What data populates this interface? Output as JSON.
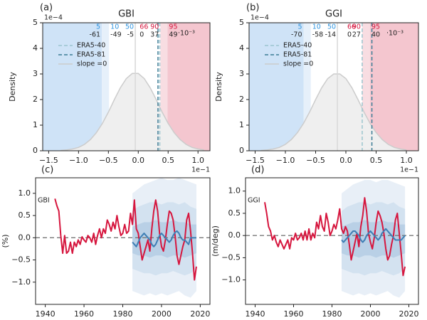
{
  "chart_data": [
    {
      "type": "density",
      "panel": "(a)",
      "title": "GBI",
      "name": "slope =0",
      "color": "#cccccc",
      "fill": "#efefef",
      "x": [
        -1.3,
        -1.2,
        -1.1,
        -1.0,
        -0.9,
        -0.8,
        -0.7,
        -0.6,
        -0.5,
        -0.4,
        -0.3,
        -0.2,
        -0.1,
        0.0,
        0.1,
        0.2,
        0.3,
        0.4,
        0.5,
        0.6,
        0.7,
        0.8,
        0.9,
        1.0,
        1.1
      ],
      "values": [
        0.01,
        0.03,
        0.07,
        0.13,
        0.25,
        0.44,
        0.71,
        1.07,
        1.51,
        2.0,
        2.46,
        2.82,
        3.02,
        3.02,
        2.82,
        2.46,
        2.0,
        1.51,
        1.07,
        0.71,
        0.44,
        0.25,
        0.13,
        0.07,
        0.03
      ],
      "xlim": [
        -1.6,
        1.2
      ],
      "ylim": [
        0,
        5
      ],
      "xticks": [
        {
          "value": -1.5,
          "label": "−1.5"
        },
        {
          "value": -1.0,
          "label": "−1.0"
        },
        {
          "value": -0.5,
          "label": "−0.5"
        },
        {
          "value": 0.0,
          "label": "0.0"
        },
        0.5,
        {
          "value": 1.0,
          "label": "1.0"
        }
      ],
      "yticks": [
        0,
        1,
        2,
        3,
        4,
        5
      ],
      "ylabel": "Density",
      "x_offset_label": "1e−1",
      "y_offset_label": "1e−4",
      "percentiles": [
        5,
        10,
        50,
        66,
        90,
        95
      ],
      "percentile_values": [
        -61,
        -49,
        -5,
        0,
        37,
        49
      ],
      "percentile_scale": "·10⁻³",
      "percentile_colors": [
        "#2e94e0",
        "#2e94e0",
        "#2e94e0",
        "#d6163e",
        "#d6163e",
        "#d6163e"
      ],
      "region_colors": [
        "#cfe3f7",
        "#e6f0fa",
        "#f8dde2",
        "#f4c6cf"
      ],
      "median_color": "#d8d8d8",
      "reference_lines": [
        {
          "name": "ERA5-40",
          "x": 0.36,
          "color": "#9cc5cf"
        },
        {
          "name": "ERA5-81",
          "x": 0.33,
          "color": "#3c7c95"
        }
      ],
      "legend": "upper left"
    },
    {
      "type": "density",
      "panel": "(b)",
      "title": "GGI",
      "name": "slope =0",
      "color": "#cccccc",
      "fill": "#efefef",
      "x": [
        -1.4,
        -1.3,
        -1.2,
        -1.1,
        -1.0,
        -0.9,
        -0.8,
        -0.7,
        -0.6,
        -0.5,
        -0.4,
        -0.3,
        -0.2,
        -0.1,
        0.0,
        0.1,
        0.2,
        0.3,
        0.4,
        0.5,
        0.6,
        0.7,
        0.8,
        0.9,
        1.0
      ],
      "values": [
        0.01,
        0.03,
        0.07,
        0.13,
        0.25,
        0.44,
        0.71,
        1.07,
        1.51,
        2.0,
        2.46,
        2.82,
        3.0,
        3.0,
        2.82,
        2.46,
        2.0,
        1.51,
        1.07,
        0.71,
        0.44,
        0.25,
        0.13,
        0.07,
        0.03
      ],
      "xlim": [
        -1.6,
        1.2
      ],
      "ylim": [
        0,
        5
      ],
      "xticks": [
        {
          "value": -1.5,
          "label": "−1.5"
        },
        {
          "value": -1.0,
          "label": "−1.0"
        },
        {
          "value": -0.5,
          "label": "−0.5"
        },
        {
          "value": 0.0,
          "label": "0.0"
        },
        0.5,
        {
          "value": 1.0,
          "label": "1.0"
        }
      ],
      "yticks": [
        0,
        1,
        2,
        3,
        4,
        5
      ],
      "ylabel": "Density",
      "x_offset_label": "1e−1",
      "y_offset_label": "1e−4",
      "percentiles": [
        5,
        10,
        50,
        66,
        90,
        95
      ],
      "percentile_values": [
        -70,
        -58,
        -14,
        0,
        27,
        40
      ],
      "percentile_scale": "·10⁻³",
      "percentile_colors": [
        "#2e94e0",
        "#2e94e0",
        "#2e94e0",
        "#d6163e",
        "#d6163e",
        "#d6163e"
      ],
      "region_colors": [
        "#cfe3f7",
        "#e6f0fa",
        "#f8dde2",
        "#f4c6cf"
      ],
      "median_color": "#d8d8d8",
      "reference_lines": [
        {
          "name": "ERA5-40",
          "x": 0.27,
          "color": "#9cc5cf"
        },
        {
          "name": "ERA5-81",
          "x": 0.43,
          "color": "#3c7c95"
        }
      ],
      "legend": "upper left"
    },
    {
      "type": "timeseries",
      "panel": "(c)",
      "label": "GBI",
      "ylabel": "(%)",
      "xlim": [
        1935,
        2025
      ],
      "ylim": [
        -1.5,
        1.35
      ],
      "xticks": [
        1940,
        1960,
        1980,
        2000,
        2020
      ],
      "yticks": [
        {
          "value": 1.0,
          "label": "1.0"
        },
        0.5,
        {
          "value": 0.0,
          "label": "0.0"
        },
        {
          "value": -0.5,
          "label": "−0.5"
        },
        {
          "value": -1.0,
          "label": "−1.0"
        }
      ],
      "hline": 0,
      "hline_color": "#777777",
      "bands": [
        {
          "color": "#e8eff7",
          "x": [
            1985,
            1988,
            1991,
            1994,
            1997,
            2000,
            2003,
            2006,
            2009,
            2012,
            2015,
            2018
          ],
          "lower": [
            -1.2,
            -1.25,
            -1.3,
            -1.25,
            -1.3,
            -1.25,
            -1.3,
            -1.25,
            -1.2,
            -1.3,
            -1.35,
            -1.2
          ],
          "upper": [
            1.0,
            1.1,
            1.2,
            1.25,
            1.3,
            1.35,
            1.3,
            1.3,
            1.35,
            1.3,
            1.25,
            1.2
          ]
        },
        {
          "color": "#d3e2f0",
          "x": [
            1985,
            1988,
            1991,
            1994,
            1997,
            2000,
            2003,
            2006,
            2009,
            2012,
            2015,
            2018
          ],
          "lower": [
            -0.7,
            -0.75,
            -0.8,
            -0.8,
            -0.85,
            -0.8,
            -0.8,
            -0.75,
            -0.8,
            -0.85,
            -0.8,
            -0.7
          ],
          "upper": [
            0.6,
            0.7,
            0.75,
            0.8,
            0.8,
            0.75,
            0.8,
            0.8,
            0.75,
            0.8,
            0.7,
            0.65
          ]
        },
        {
          "color": "#b9d0e6",
          "x": [
            1985,
            1988,
            1991,
            1994,
            1997,
            2000,
            2003,
            2006,
            2009,
            2012,
            2015,
            2018
          ],
          "lower": [
            -0.35,
            -0.4,
            -0.4,
            -0.45,
            -0.4,
            -0.4,
            -0.45,
            -0.4,
            -0.4,
            -0.45,
            -0.4,
            -0.35
          ],
          "upper": [
            0.25,
            0.3,
            0.35,
            0.35,
            0.4,
            0.35,
            0.35,
            0.4,
            0.35,
            0.35,
            0.3,
            0.3
          ]
        }
      ],
      "series": [
        {
          "color": "#d6163e",
          "x": [
            1945,
            1946,
            1947,
            1948,
            1949,
            1950,
            1951,
            1952,
            1953,
            1954,
            1955,
            1956,
            1957,
            1958,
            1959,
            1960,
            1961,
            1962,
            1963,
            1964,
            1965,
            1966,
            1967,
            1968,
            1969,
            1970,
            1971,
            1972,
            1973,
            1974,
            1975,
            1976,
            1977,
            1978,
            1979,
            1980,
            1981,
            1982,
            1983,
            1984,
            1985,
            1986,
            1987,
            1988,
            1989,
            1990,
            1991,
            1992,
            1993,
            1994,
            1995,
            1996,
            1997,
            1998,
            1999,
            2000,
            2001,
            2002,
            2003,
            2004,
            2005,
            2006,
            2007,
            2008,
            2009,
            2010,
            2011,
            2012,
            2013,
            2014,
            2015,
            2016,
            2017,
            2018
          ],
          "values": [
            0.88,
            0.72,
            0.6,
            0.05,
            -0.35,
            0.05,
            -0.35,
            -0.3,
            -0.1,
            -0.35,
            -0.1,
            -0.2,
            -0.05,
            -0.15,
            0.02,
            -0.05,
            -0.1,
            0.05,
            0.0,
            -0.1,
            0.1,
            -0.15,
            0.05,
            0.2,
            0.0,
            0.2,
            0.1,
            0.4,
            0.3,
            0.15,
            0.35,
            0.2,
            0.5,
            0.25,
            0.05,
            0.1,
            0.3,
            0.1,
            0.15,
            0.55,
            0.3,
            0.85,
            0.2,
            0.1,
            -0.2,
            -0.5,
            -0.35,
            -0.2,
            -0.05,
            -0.3,
            0.2,
            0.6,
            0.85,
            0.6,
            0.1,
            -0.2,
            -0.3,
            -0.05,
            0.3,
            0.6,
            0.55,
            0.4,
            0.05,
            -0.4,
            -0.6,
            -0.4,
            -0.2,
            -0.05,
            0.4,
            0.55,
            0.15,
            -0.35,
            -0.95,
            -0.65
          ]
        },
        {
          "color": "#3f7fb5",
          "x": [
            1985,
            1986,
            1987,
            1988,
            1989,
            1990,
            1991,
            1992,
            1993,
            1994,
            1995,
            1996,
            1997,
            1998,
            1999,
            2000,
            2001,
            2002,
            2003,
            2004,
            2005,
            2006,
            2007,
            2008,
            2009,
            2010,
            2011,
            2012,
            2013,
            2014,
            2015,
            2016,
            2017,
            2018
          ],
          "values": [
            -0.1,
            -0.15,
            -0.2,
            -0.1,
            0.0,
            0.05,
            0.1,
            0.05,
            0.0,
            -0.05,
            -0.15,
            -0.2,
            -0.15,
            -0.05,
            0.05,
            0.1,
            0.05,
            0.0,
            -0.05,
            -0.1,
            -0.05,
            0.05,
            0.12,
            0.15,
            0.1,
            0.0,
            -0.05,
            -0.05,
            -0.1,
            -0.15,
            0.0,
            0.0,
            0.0,
            0.0
          ]
        }
      ]
    },
    {
      "type": "timeseries",
      "panel": "(d)",
      "label": "GGI",
      "ylabel": "(m/deg)",
      "xlim": [
        1935,
        2025
      ],
      "ylim": [
        -1.55,
        1.3
      ],
      "xticks": [
        1940,
        1960,
        1980,
        2000,
        2020
      ],
      "yticks": [
        {
          "value": 1.0,
          "label": "1.0"
        },
        0.5,
        {
          "value": 0.0,
          "label": "0.0"
        },
        {
          "value": -0.5,
          "label": "−0.5"
        },
        {
          "value": -1.0,
          "label": "−1.0"
        }
      ],
      "hline": 0,
      "hline_color": "#777777",
      "bands": [
        {
          "color": "#e8eff7",
          "x": [
            1985,
            1988,
            1991,
            1994,
            1997,
            2000,
            2003,
            2006,
            2009,
            2012,
            2015,
            2018
          ],
          "lower": [
            -1.25,
            -1.3,
            -1.35,
            -1.3,
            -1.35,
            -1.3,
            -1.35,
            -1.3,
            -1.25,
            -1.35,
            -1.4,
            -1.25
          ],
          "upper": [
            0.95,
            1.05,
            1.15,
            1.2,
            1.25,
            1.25,
            1.2,
            1.25,
            1.25,
            1.2,
            1.15,
            1.1
          ]
        },
        {
          "color": "#d3e2f0",
          "x": [
            1985,
            1988,
            1991,
            1994,
            1997,
            2000,
            2003,
            2006,
            2009,
            2012,
            2015,
            2018
          ],
          "lower": [
            -0.75,
            -0.8,
            -0.85,
            -0.85,
            -0.9,
            -0.85,
            -0.85,
            -0.8,
            -0.85,
            -0.9,
            -0.85,
            -0.75
          ],
          "upper": [
            0.55,
            0.65,
            0.7,
            0.75,
            0.75,
            0.7,
            0.75,
            0.75,
            0.7,
            0.75,
            0.65,
            0.6
          ]
        },
        {
          "color": "#b9d0e6",
          "x": [
            1985,
            1988,
            1991,
            1994,
            1997,
            2000,
            2003,
            2006,
            2009,
            2012,
            2015,
            2018
          ],
          "lower": [
            -0.4,
            -0.45,
            -0.45,
            -0.5,
            -0.45,
            -0.45,
            -0.5,
            -0.45,
            -0.45,
            -0.5,
            -0.45,
            -0.4
          ],
          "upper": [
            0.2,
            0.25,
            0.3,
            0.3,
            0.35,
            0.3,
            0.3,
            0.35,
            0.3,
            0.3,
            0.25,
            0.25
          ]
        }
      ],
      "series": [
        {
          "color": "#d6163e",
          "x": [
            1945,
            1946,
            1947,
            1948,
            1949,
            1950,
            1951,
            1952,
            1953,
            1954,
            1955,
            1956,
            1957,
            1958,
            1959,
            1960,
            1961,
            1962,
            1963,
            1964,
            1965,
            1966,
            1967,
            1968,
            1969,
            1970,
            1971,
            1972,
            1973,
            1974,
            1975,
            1976,
            1977,
            1978,
            1979,
            1980,
            1981,
            1982,
            1983,
            1984,
            1985,
            1986,
            1987,
            1988,
            1989,
            1990,
            1991,
            1992,
            1993,
            1994,
            1995,
            1996,
            1997,
            1998,
            1999,
            2000,
            2001,
            2002,
            2003,
            2004,
            2005,
            2006,
            2007,
            2008,
            2009,
            2010,
            2011,
            2012,
            2013,
            2014,
            2015,
            2016,
            2017,
            2018
          ],
          "values": [
            0.75,
            0.5,
            0.2,
            0.1,
            -0.1,
            0.0,
            -0.15,
            -0.25,
            -0.1,
            -0.2,
            -0.3,
            -0.2,
            -0.1,
            -0.3,
            -0.05,
            -0.1,
            0.05,
            -0.1,
            -0.05,
            0.05,
            -0.1,
            0.1,
            -0.1,
            0.15,
            -0.1,
            0.05,
            -0.05,
            0.3,
            0.15,
            0.45,
            0.2,
            0.1,
            0.5,
            0.3,
            0.0,
            0.1,
            0.25,
            0.15,
            0.35,
            0.6,
            0.15,
            0.05,
            0.2,
            0.1,
            -0.2,
            -0.55,
            -0.35,
            -0.15,
            0.05,
            -0.25,
            0.2,
            0.45,
            0.85,
            0.55,
            0.05,
            -0.15,
            -0.3,
            -0.05,
            0.3,
            0.55,
            0.45,
            0.3,
            0.05,
            -0.3,
            -0.55,
            -0.45,
            -0.2,
            0.0,
            0.35,
            0.5,
            0.05,
            -0.4,
            -0.9,
            -0.7
          ]
        },
        {
          "color": "#3f7fb5",
          "x": [
            1985,
            1986,
            1987,
            1988,
            1989,
            1990,
            1991,
            1992,
            1993,
            1994,
            1995,
            1996,
            1997,
            1998,
            1999,
            2000,
            2001,
            2002,
            2003,
            2004,
            2005,
            2006,
            2007,
            2008,
            2009,
            2010,
            2011,
            2012,
            2013,
            2014,
            2015,
            2016,
            2017,
            2018
          ],
          "values": [
            -0.1,
            -0.15,
            -0.1,
            -0.05,
            0.0,
            0.05,
            0.1,
            0.1,
            0.05,
            0.0,
            -0.1,
            -0.15,
            -0.1,
            0.0,
            0.05,
            0.1,
            0.05,
            0.0,
            -0.05,
            -0.1,
            -0.05,
            0.05,
            0.1,
            0.15,
            0.1,
            0.05,
            0.0,
            -0.05,
            -0.1,
            -0.1,
            -0.1,
            -0.1,
            -0.05,
            0.0
          ]
        }
      ]
    }
  ]
}
